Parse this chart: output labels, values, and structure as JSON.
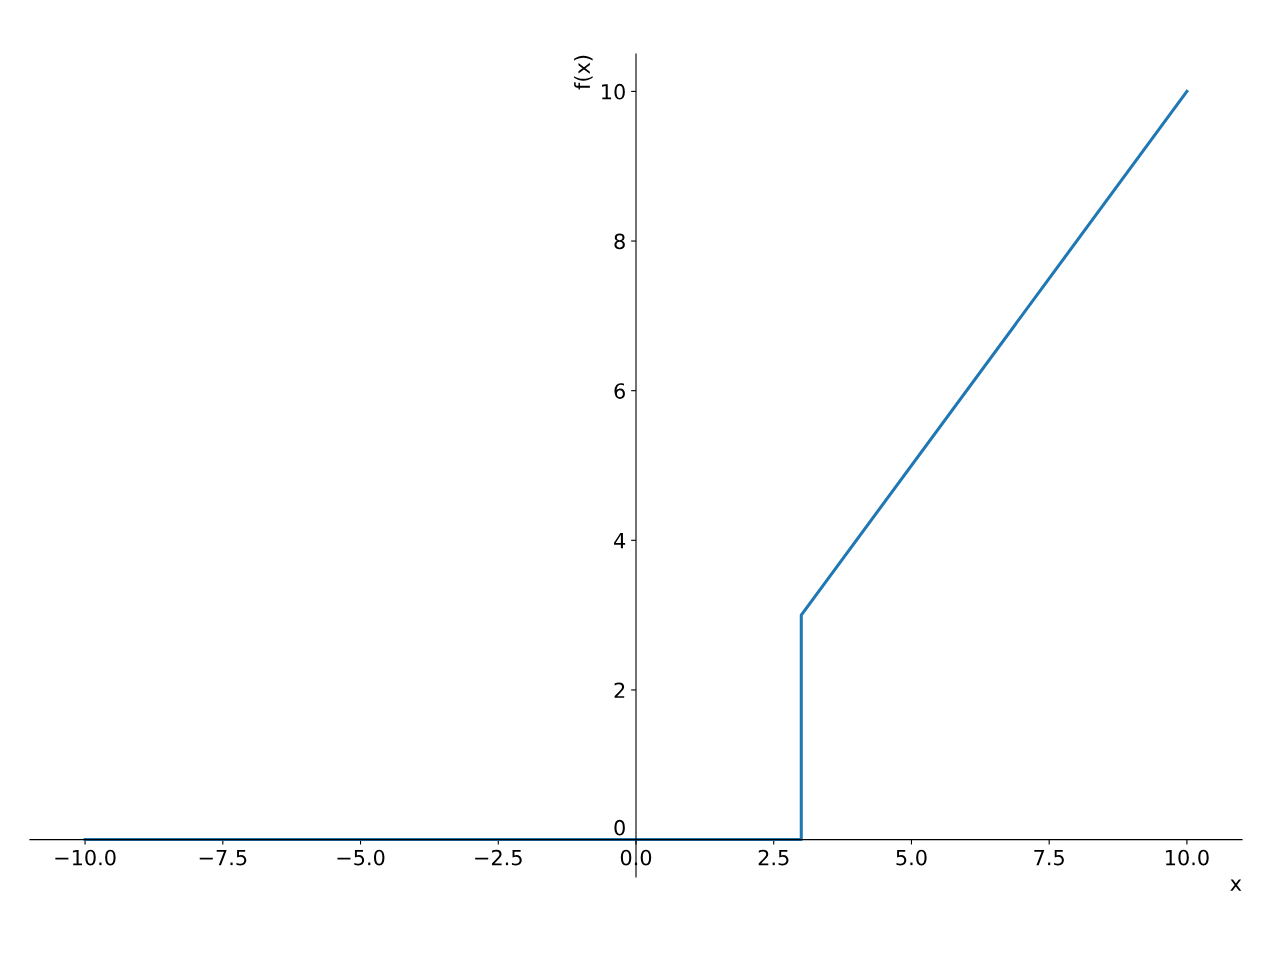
{
  "chart_data": {
    "type": "line",
    "xlabel": "x",
    "ylabel": "f(x)",
    "series": [
      {
        "color": "#1f77b4",
        "x": [
          -10,
          3,
          3,
          10
        ],
        "values": [
          0,
          0,
          3,
          10
        ]
      }
    ],
    "xlim": [
      -11,
      11
    ],
    "ylim": [
      -0.5,
      10.5
    ],
    "xticks": [
      {
        "value": -10,
        "label": "−10.0"
      },
      {
        "value": -7.5,
        "label": "−7.5"
      },
      {
        "value": -5,
        "label": "−5.0"
      },
      {
        "value": -2.5,
        "label": "−2.5"
      },
      {
        "value": 0,
        "label": "0.0"
      },
      {
        "value": 2.5,
        "label": "2.5"
      },
      {
        "value": 5,
        "label": "5.0"
      },
      {
        "value": 7.5,
        "label": "7.5"
      },
      {
        "value": 10,
        "label": "10.0"
      }
    ],
    "yticks": [
      0,
      2,
      4,
      6,
      8,
      10
    ]
  }
}
